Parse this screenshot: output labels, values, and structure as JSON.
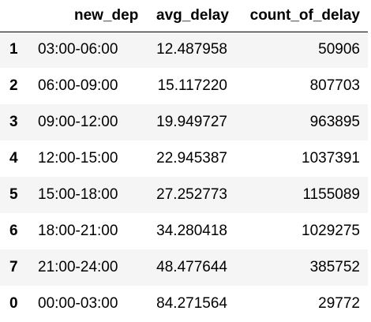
{
  "table": {
    "columns": [
      "",
      "new_dep",
      "avg_delay",
      "count_of_delay"
    ],
    "rows": [
      {
        "index": "1",
        "new_dep": "03:00-06:00",
        "avg_delay": "12.487958",
        "count_of_delay": "50906"
      },
      {
        "index": "2",
        "new_dep": "06:00-09:00",
        "avg_delay": "15.117220",
        "count_of_delay": "807703"
      },
      {
        "index": "3",
        "new_dep": "09:00-12:00",
        "avg_delay": "19.949727",
        "count_of_delay": "963895"
      },
      {
        "index": "4",
        "new_dep": "12:00-15:00",
        "avg_delay": "22.945387",
        "count_of_delay": "1037391"
      },
      {
        "index": "5",
        "new_dep": "15:00-18:00",
        "avg_delay": "27.252773",
        "count_of_delay": "1155089"
      },
      {
        "index": "6",
        "new_dep": "18:00-21:00",
        "avg_delay": "34.280418",
        "count_of_delay": "1029275"
      },
      {
        "index": "7",
        "new_dep": "21:00-24:00",
        "avg_delay": "48.477644",
        "count_of_delay": "385752"
      },
      {
        "index": "0",
        "new_dep": "00:00-03:00",
        "avg_delay": "84.271564",
        "count_of_delay": "29772"
      }
    ]
  },
  "colors": {
    "row_stripe": "#f5f5f5",
    "background": "#ffffff",
    "text": "#000000"
  }
}
